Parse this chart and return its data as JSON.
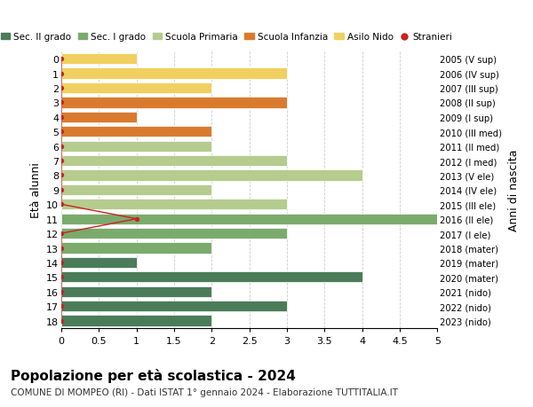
{
  "ages": [
    18,
    17,
    16,
    15,
    14,
    13,
    12,
    11,
    10,
    9,
    8,
    7,
    6,
    5,
    4,
    3,
    2,
    1,
    0
  ],
  "years": [
    "2005 (V sup)",
    "2006 (IV sup)",
    "2007 (III sup)",
    "2008 (II sup)",
    "2009 (I sup)",
    "2010 (III med)",
    "2011 (II med)",
    "2012 (I med)",
    "2013 (V ele)",
    "2014 (IV ele)",
    "2015 (III ele)",
    "2016 (II ele)",
    "2017 (I ele)",
    "2018 (mater)",
    "2019 (mater)",
    "2020 (mater)",
    "2021 (nido)",
    "2022 (nido)",
    "2023 (nido)"
  ],
  "bar_values": [
    2,
    3,
    2,
    4,
    1,
    2,
    3,
    5,
    3,
    2,
    4,
    3,
    2,
    2,
    1,
    3,
    2,
    3,
    1
  ],
  "bar_colors": [
    "#4a7c59",
    "#4a7c59",
    "#4a7c59",
    "#4a7c59",
    "#4a7c59",
    "#7aab6d",
    "#7aab6d",
    "#7aab6d",
    "#b5cc8e",
    "#b5cc8e",
    "#b5cc8e",
    "#b5cc8e",
    "#b5cc8e",
    "#d97b2e",
    "#d97b2e",
    "#d97b2e",
    "#f0d060",
    "#f0d060",
    "#f0d060"
  ],
  "stranieri_values": [
    0,
    0,
    0,
    0,
    0,
    0,
    0,
    1,
    0,
    0,
    0,
    0,
    0,
    0,
    0,
    0,
    0,
    0,
    0
  ],
  "stranieri_color": "#cc2222",
  "legend_labels": [
    "Sec. II grado",
    "Sec. I grado",
    "Scuola Primaria",
    "Scuola Infanzia",
    "Asilo Nido",
    "Stranieri"
  ],
  "legend_colors": [
    "#4a7c59",
    "#7aab6d",
    "#b5cc8e",
    "#d97b2e",
    "#f0d060",
    "#cc2222"
  ],
  "ylabel_left": "Età alunni",
  "ylabel_right": "Anni di nascita",
  "title": "Popolazione per età scolastica - 2024",
  "subtitle": "COMUNE DI MOMPEO (RI) - Dati ISTAT 1° gennaio 2024 - Elaborazione TUTTITALIA.IT",
  "xlim": [
    0,
    5.0
  ],
  "xticks": [
    0,
    0.5,
    1.0,
    1.5,
    2.0,
    2.5,
    3.0,
    3.5,
    4.0,
    4.5,
    5.0
  ],
  "grid_color": "#cccccc",
  "bar_height": 0.75
}
